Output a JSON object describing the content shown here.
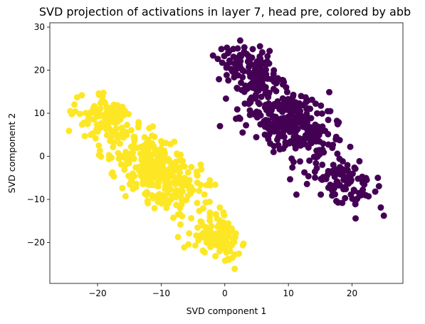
{
  "chart_data": {
    "type": "scatter",
    "title": "SVD projection of activations in layer 7, head pre, colored by abb",
    "xlabel": "SVD component 1",
    "ylabel": "SVD component 2",
    "xlim": [
      -27.5,
      28
    ],
    "ylim": [
      -29.5,
      31
    ],
    "xticks": [
      -20,
      -10,
      0,
      10,
      20
    ],
    "yticks": [
      -20,
      -10,
      0,
      10,
      20,
      30
    ],
    "xtick_labels": [
      "−20",
      "−10",
      "0",
      "10",
      "20"
    ],
    "ytick_labels": [
      "−20",
      "−10",
      "0",
      "10",
      "20",
      "30"
    ],
    "grid": false,
    "legend": "none",
    "series": [
      {
        "color": "#440154",
        "clusters": [
          {
            "center": [
              4,
              20
            ],
            "spread_along": 3.2,
            "spread_across": 2.0,
            "count": 120
          },
          {
            "center": [
              10,
              8
            ],
            "spread_along": 5.0,
            "spread_across": 2.8,
            "count": 320
          },
          {
            "center": [
              19,
              -6
            ],
            "spread_along": 3.3,
            "spread_across": 2.0,
            "count": 110
          }
        ],
        "direction": [
          1,
          -1.5
        ],
        "x_range": [
          -2,
          25
        ],
        "y_range": [
          -15,
          28
        ]
      },
      {
        "color": "#fde725",
        "clusters": [
          {
            "center": [
              -19,
              9
            ],
            "spread_along": 3.0,
            "spread_across": 2.2,
            "count": 110
          },
          {
            "center": [
              -11,
              -3
            ],
            "spread_along": 5.0,
            "spread_across": 2.8,
            "count": 330
          },
          {
            "center": [
              -1,
              -19
            ],
            "spread_along": 2.8,
            "spread_across": 1.8,
            "count": 110
          }
        ],
        "direction": [
          1,
          -1.45
        ],
        "x_range": [
          -26,
          4
        ],
        "y_range": [
          -27,
          17
        ]
      }
    ]
  }
}
